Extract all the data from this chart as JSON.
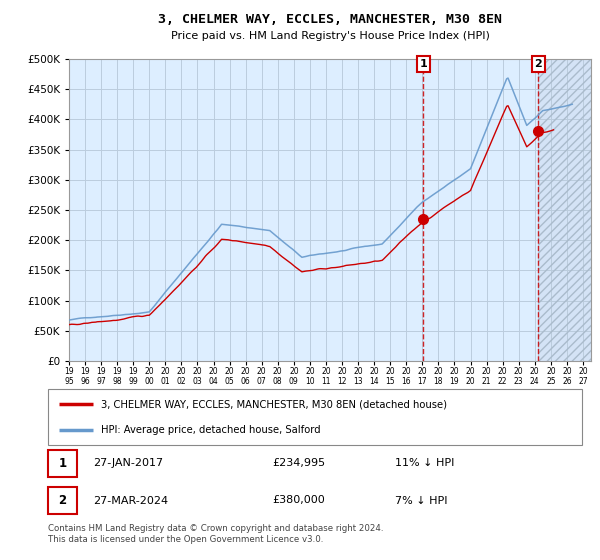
{
  "title": "3, CHELMER WAY, ECCLES, MANCHESTER, M30 8EN",
  "subtitle": "Price paid vs. HM Land Registry's House Price Index (HPI)",
  "legend_line1": "3, CHELMER WAY, ECCLES, MANCHESTER, M30 8EN (detached house)",
  "legend_line2": "HPI: Average price, detached house, Salford",
  "annotation1_date": "27-JAN-2017",
  "annotation1_price": "£234,995",
  "annotation1_hpi": "11% ↓ HPI",
  "annotation2_date": "27-MAR-2024",
  "annotation2_price": "£380,000",
  "annotation2_hpi": "7% ↓ HPI",
  "footer": "Contains HM Land Registry data © Crown copyright and database right 2024.\nThis data is licensed under the Open Government Licence v3.0.",
  "sale1_year": 2017.07,
  "sale1_value": 234995,
  "sale2_year": 2024.23,
  "sale2_value": 380000,
  "hpi_color": "#6699cc",
  "property_color": "#cc0000",
  "background_plot": "#ddeeff",
  "background_future_hatch": "#bbccdd",
  "grid_color": "#bbccdd",
  "ylim": [
    0,
    500000
  ],
  "xlim_start": 1995.0,
  "xlim_end": 2027.5,
  "seed": 42
}
